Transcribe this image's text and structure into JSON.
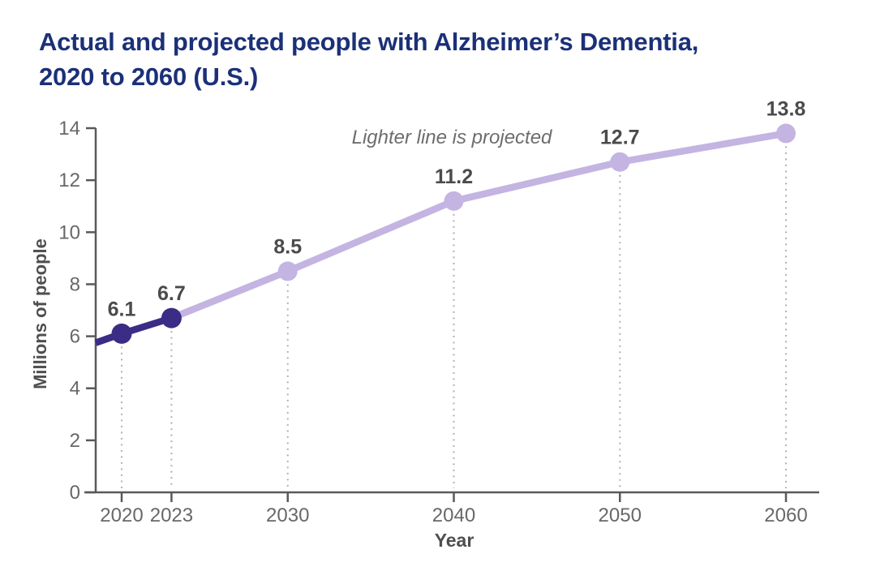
{
  "page": {
    "title_line1": "Actual and projected people with Alzheimer’s Dementia,",
    "title_line2": "2020 to 2060 (U.S.)"
  },
  "chart_data": {
    "type": "line",
    "title": "Actual and projected people with Alzheimer’s Dementia, 2020 to 2060 (U.S.)",
    "xlabel": "Year",
    "ylabel": "Millions of people",
    "annotation": "Lighter line is projected",
    "x": [
      2020,
      2023,
      2030,
      2040,
      2050,
      2060
    ],
    "xtick_labels": [
      "2020",
      "2023",
      "2030",
      "2040",
      "2050",
      "2060"
    ],
    "yticks": [
      0,
      2,
      4,
      6,
      8,
      10,
      12,
      14
    ],
    "ylim": [
      0,
      14
    ],
    "grid": false,
    "legend_position": "none",
    "series": [
      {
        "name": "actual",
        "color": "#3b2c85",
        "x": [
          2020,
          2023
        ],
        "values": [
          6.1,
          6.7
        ],
        "labels": [
          "6.1",
          "6.7"
        ],
        "axis_intercept_value": 5.75
      },
      {
        "name": "projected",
        "color": "#c4b4e2",
        "x": [
          2023,
          2030,
          2040,
          2050,
          2060
        ],
        "values": [
          6.7,
          8.5,
          11.2,
          12.7,
          13.8
        ],
        "labels": [
          null,
          "8.5",
          "11.2",
          "12.7",
          "13.8"
        ]
      }
    ],
    "colors": {
      "title": "#1b3078",
      "axis": "#59595b",
      "tick_label": "#68686a",
      "data_label": "#4b4b4d",
      "axis_title": "#4f4f51",
      "annotation": "#6d6d70",
      "leader_dots": "#b2b1b1"
    }
  }
}
